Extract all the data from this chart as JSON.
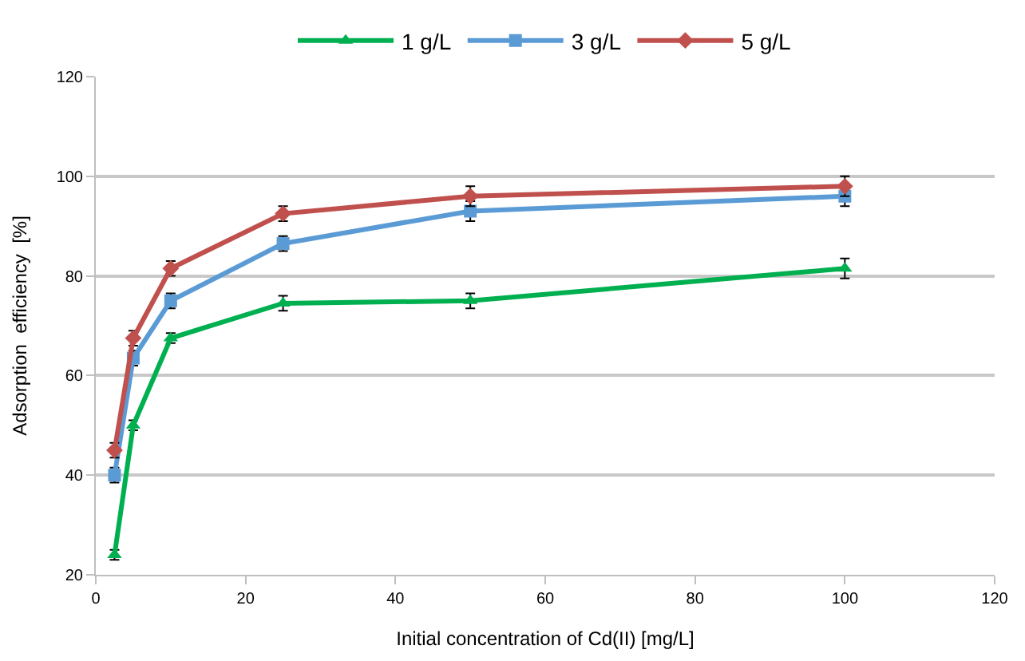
{
  "chart_data": {
    "type": "line",
    "xlabel": "Initial concentration of Cd(II) [mg/L]",
    "ylabel": "Adsorption  efficiency  [%]",
    "x": [
      2.5,
      5,
      10,
      25,
      50,
      100
    ],
    "series": [
      {
        "name": "1 g/L",
        "color": "#00b050",
        "marker": "triangle",
        "values": [
          24,
          50,
          67.5,
          74.5,
          75,
          81.5
        ],
        "errors": [
          1,
          1,
          1,
          1.5,
          1.5,
          2
        ]
      },
      {
        "name": "3 g/L",
        "color": "#5b9bd5",
        "marker": "square",
        "values": [
          40,
          63.5,
          75,
          86.5,
          93,
          96
        ],
        "errors": [
          1.5,
          1.5,
          1.5,
          1.5,
          2,
          2
        ]
      },
      {
        "name": "5 g/L",
        "color": "#c0504d",
        "marker": "diamond",
        "values": [
          45,
          67.5,
          81.5,
          92.5,
          96,
          98
        ],
        "errors": [
          1.5,
          1.5,
          1.5,
          1.5,
          2,
          2
        ]
      }
    ],
    "xlim": [
      0,
      120
    ],
    "xticks": [
      0,
      20,
      40,
      60,
      80,
      100,
      120
    ],
    "ylim": [
      20,
      120
    ],
    "yticks": [
      20,
      40,
      60,
      80,
      100,
      120
    ],
    "grid": "y",
    "legend": "top"
  }
}
